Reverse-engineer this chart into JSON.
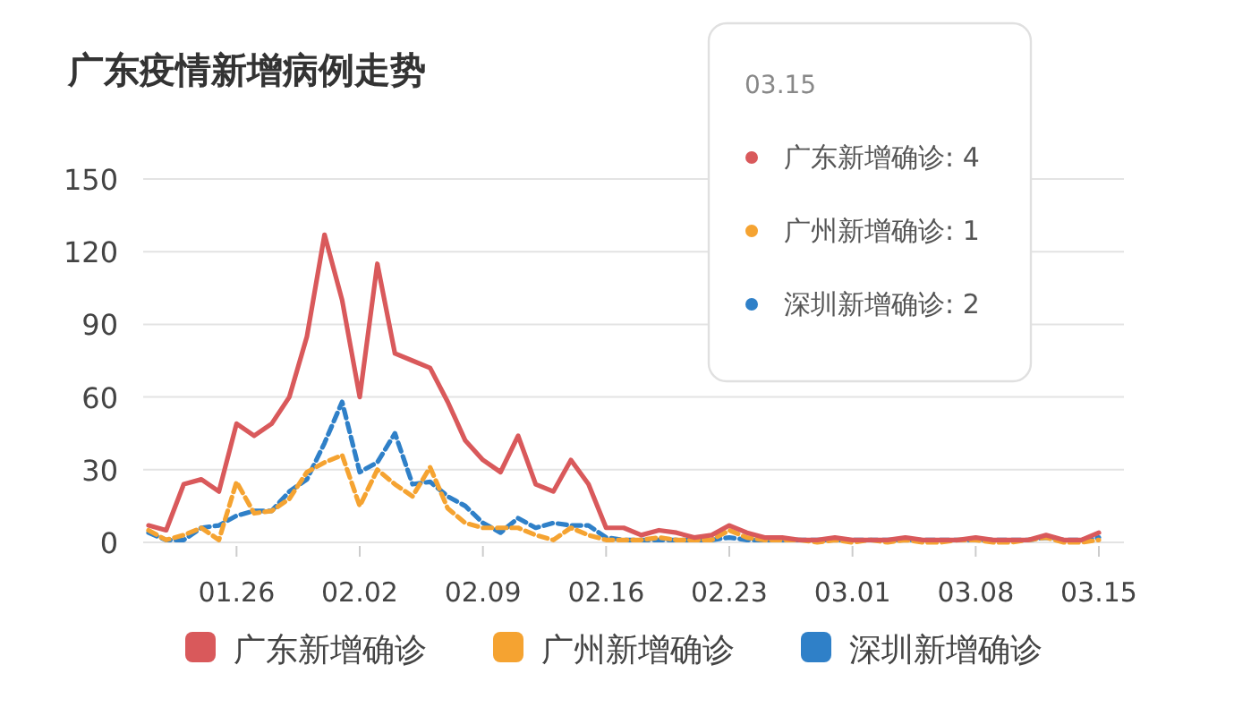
{
  "chart_data": {
    "type": "line",
    "title": "广东疫情新增病例走势",
    "categories": [
      null,
      null,
      null,
      null,
      null,
      "01.26",
      null,
      null,
      null,
      null,
      null,
      null,
      "02.02",
      null,
      null,
      null,
      null,
      null,
      null,
      "02.09",
      null,
      null,
      null,
      null,
      null,
      null,
      "02.16",
      null,
      null,
      null,
      null,
      null,
      null,
      "02.23",
      null,
      null,
      null,
      null,
      null,
      null,
      "03.01",
      null,
      null,
      null,
      null,
      null,
      null,
      "03.08",
      null,
      null,
      null,
      null,
      null,
      null,
      "03.15"
    ],
    "series": [
      {
        "name": "广东新增确诊",
        "color": "#d9595b",
        "line_style": "solid",
        "values": [
          7,
          5,
          24,
          26,
          21,
          49,
          44,
          49,
          60,
          85,
          127,
          100,
          60,
          115,
          78,
          75,
          72,
          58,
          42,
          34,
          29,
          44,
          24,
          21,
          34,
          24,
          6,
          6,
          3,
          5,
          4,
          2,
          3,
          7,
          4,
          2,
          2,
          1,
          1,
          2,
          1,
          1,
          1,
          2,
          1,
          1,
          1,
          2,
          1,
          1,
          1,
          3,
          1,
          1,
          4
        ]
      },
      {
        "name": "广州新增确诊",
        "color": "#f5a331",
        "line_style": "dashed",
        "values": [
          5,
          1,
          3,
          6,
          1,
          25,
          12,
          13,
          18,
          29,
          33,
          36,
          15,
          30,
          24,
          19,
          31,
          14,
          8,
          6,
          6,
          6,
          3,
          1,
          6,
          3,
          1,
          1,
          1,
          2,
          1,
          1,
          1,
          5,
          2,
          1,
          1,
          1,
          0,
          1,
          0,
          1,
          0,
          1,
          0,
          0,
          1,
          1,
          0,
          0,
          1,
          2,
          0,
          0,
          1
        ]
      },
      {
        "name": "深圳新增确诊",
        "color": "#2f80c8",
        "line_style": "dashed",
        "values": [
          4,
          1,
          1,
          6,
          7,
          11,
          13,
          13,
          21,
          26,
          41,
          58,
          29,
          33,
          45,
          24,
          25,
          19,
          15,
          8,
          4,
          10,
          6,
          8,
          7,
          7,
          2,
          1,
          1,
          1,
          1,
          1,
          1,
          2,
          1,
          1,
          1,
          1,
          1,
          1,
          1,
          1,
          1,
          1,
          1,
          1,
          1,
          1,
          1,
          1,
          1,
          2,
          1,
          1,
          2
        ]
      }
    ],
    "ylim": [
      0,
      150
    ],
    "yticks": [
      0,
      30,
      60,
      90,
      120,
      150
    ],
    "grid": "y",
    "legend": "bottom",
    "marker": "none",
    "annotations": [
      "03.15",
      "广东新增确诊: 4",
      "广州新增确诊: 1",
      "深圳新增确诊: 2"
    ]
  }
}
